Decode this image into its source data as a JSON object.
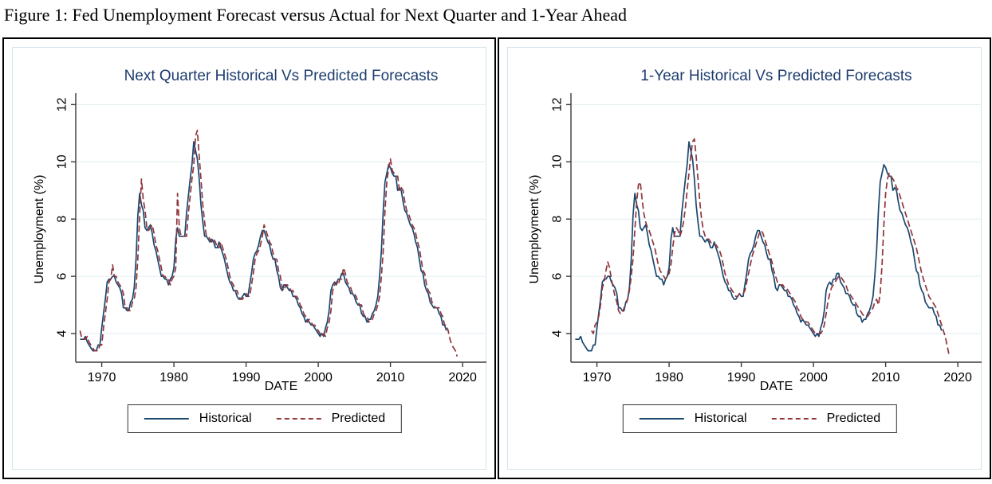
{
  "figure_caption": "Figure 1: Fed Unemployment Forecast versus Actual for Next Quarter and 1-Year Ahead",
  "colors": {
    "historical": "#1a476f",
    "predicted": "#90353b",
    "title": "#1e3d6e",
    "grid": "#e2edf1",
    "axis": "#3a3a3a",
    "panel_border": "#000000",
    "graph_frame_border": "#d4e4ed"
  },
  "chart_data": [
    {
      "type": "line",
      "title": "Next Quarter Historical Vs Predicted Forecasts",
      "xlabel": "DATE",
      "ylabel": "Unemployment (%)",
      "xlim": [
        1966.4,
        2023.3
      ],
      "ylim": [
        3.0,
        12.4
      ],
      "xticks": [
        1970,
        1980,
        1990,
        2000,
        2010,
        2020
      ],
      "yticks": [
        4,
        6,
        8,
        10,
        12
      ],
      "grid": "horizontal",
      "legend_position": "bottom",
      "series": [
        {
          "name": "Historical",
          "style": "solid",
          "color": "#1a476f",
          "x_start": 1967.0,
          "x_step": 0.25,
          "values": [
            3.8,
            3.8,
            3.8,
            3.9,
            3.7,
            3.6,
            3.5,
            3.4,
            3.4,
            3.4,
            3.6,
            3.6,
            4.2,
            4.7,
            5.2,
            5.8,
            5.9,
            5.9,
            6.0,
            6.0,
            5.8,
            5.7,
            5.6,
            5.4,
            4.9,
            4.9,
            4.8,
            4.8,
            5.1,
            5.2,
            5.6,
            6.6,
            8.1,
            8.9,
            8.5,
            8.3,
            7.7,
            7.6,
            7.7,
            7.8,
            7.5,
            7.1,
            6.9,
            6.6,
            6.3,
            6.0,
            6.0,
            5.9,
            5.9,
            5.7,
            5.9,
            6.0,
            6.3,
            7.3,
            7.7,
            7.4,
            7.4,
            7.4,
            7.4,
            8.2,
            8.8,
            9.4,
            9.9,
            10.7,
            10.4,
            10.1,
            9.4,
            8.5,
            7.9,
            7.4,
            7.4,
            7.3,
            7.2,
            7.3,
            7.2,
            7.0,
            7.0,
            7.2,
            7.0,
            6.8,
            6.6,
            6.3,
            6.0,
            5.8,
            5.7,
            5.5,
            5.5,
            5.3,
            5.2,
            5.2,
            5.3,
            5.4,
            5.3,
            5.3,
            5.7,
            6.1,
            6.6,
            6.8,
            6.9,
            7.1,
            7.4,
            7.6,
            7.6,
            7.4,
            7.2,
            7.1,
            6.8,
            6.6,
            6.6,
            6.2,
            6.0,
            5.6,
            5.5,
            5.7,
            5.7,
            5.6,
            5.5,
            5.5,
            5.3,
            5.3,
            5.2,
            5.0,
            4.9,
            4.7,
            4.6,
            4.4,
            4.5,
            4.4,
            4.3,
            4.3,
            4.2,
            4.1,
            4.0,
            3.9,
            4.0,
            3.9,
            4.2,
            4.4,
            4.8,
            5.5,
            5.7,
            5.8,
            5.7,
            5.9,
            5.9,
            6.1,
            6.1,
            5.8,
            5.7,
            5.6,
            5.4,
            5.4,
            5.3,
            5.1,
            5.0,
            5.0,
            4.7,
            4.6,
            4.6,
            4.4,
            4.5,
            4.5,
            4.7,
            4.8,
            5.0,
            5.3,
            6.0,
            6.9,
            8.3,
            9.3,
            9.6,
            9.9,
            9.8,
            9.6,
            9.5,
            9.5,
            9.0,
            9.1,
            9.0,
            8.6,
            8.3,
            8.2,
            8.0,
            7.8,
            7.7,
            7.5,
            7.2,
            7.0,
            6.6,
            6.2,
            6.1,
            5.7,
            5.5,
            5.4,
            5.1,
            5.0,
            4.9,
            4.9,
            4.9,
            4.7,
            4.6,
            4.3,
            4.3,
            4.1
          ]
        },
        {
          "name": "Predicted",
          "style": "dashed",
          "color": "#90353b",
          "x_start": 1967.0,
          "x_step": 0.25,
          "values": [
            4.1,
            3.8,
            3.8,
            3.8,
            3.9,
            3.7,
            3.6,
            3.5,
            3.4,
            3.4,
            3.4,
            3.6,
            3.6,
            4.2,
            4.7,
            5.2,
            5.8,
            5.9,
            6.4,
            6.0,
            6.0,
            5.8,
            5.7,
            5.6,
            5.4,
            4.9,
            4.9,
            4.8,
            4.8,
            5.1,
            5.2,
            5.6,
            6.6,
            8.1,
            9.4,
            8.7,
            8.3,
            7.7,
            7.6,
            7.7,
            7.8,
            7.5,
            7.1,
            6.9,
            6.6,
            6.3,
            6.0,
            6.0,
            5.9,
            5.9,
            5.7,
            5.9,
            6.0,
            6.3,
            8.9,
            7.7,
            7.4,
            7.4,
            7.4,
            7.4,
            8.2,
            8.8,
            9.4,
            9.9,
            10.9,
            11.1,
            10.2,
            9.4,
            8.5,
            7.9,
            7.4,
            7.4,
            7.3,
            7.2,
            7.3,
            7.2,
            7.0,
            7.0,
            7.2,
            7.0,
            6.8,
            6.6,
            6.3,
            6.0,
            5.8,
            5.7,
            5.5,
            5.5,
            5.3,
            5.2,
            5.2,
            5.3,
            5.4,
            5.3,
            5.3,
            5.7,
            6.1,
            6.6,
            6.8,
            6.9,
            7.1,
            7.4,
            7.8,
            7.6,
            7.4,
            7.2,
            7.1,
            6.8,
            6.6,
            6.6,
            6.2,
            6.0,
            5.6,
            5.5,
            5.7,
            5.7,
            5.6,
            5.5,
            5.5,
            5.3,
            5.3,
            5.2,
            5.0,
            4.9,
            4.7,
            4.6,
            4.4,
            4.5,
            4.4,
            4.3,
            4.3,
            4.2,
            4.1,
            4.0,
            3.9,
            4.0,
            3.9,
            4.2,
            4.4,
            4.8,
            5.5,
            5.7,
            5.8,
            5.7,
            5.9,
            5.9,
            6.3,
            6.1,
            5.8,
            5.7,
            5.6,
            5.4,
            5.4,
            5.3,
            5.1,
            5.0,
            5.0,
            4.7,
            4.6,
            4.6,
            4.4,
            4.5,
            4.5,
            4.7,
            4.8,
            5.0,
            5.3,
            6.0,
            6.9,
            8.3,
            9.3,
            9.8,
            10.1,
            9.7,
            9.6,
            9.5,
            9.5,
            9.0,
            9.1,
            9.0,
            8.6,
            8.3,
            8.2,
            8.0,
            7.8,
            7.7,
            7.5,
            7.2,
            7.0,
            6.6,
            6.2,
            6.1,
            5.7,
            5.5,
            5.4,
            5.1,
            5.0,
            4.9,
            4.9,
            4.9,
            4.7,
            4.6,
            4.3,
            4.3,
            4.1,
            3.8,
            3.6,
            3.5,
            3.4,
            3.2
          ]
        }
      ]
    },
    {
      "type": "line",
      "title": "1-Year Historical Vs Predicted Forecasts",
      "xlabel": "DATE",
      "ylabel": "Unemployment (%)",
      "xlim": [
        1966.4,
        2023.3
      ],
      "ylim": [
        3.0,
        12.4
      ],
      "xticks": [
        1970,
        1980,
        1990,
        2000,
        2010,
        2020
      ],
      "yticks": [
        4,
        6,
        8,
        10,
        12
      ],
      "grid": "horizontal",
      "legend_position": "bottom",
      "series": [
        {
          "name": "Historical",
          "style": "solid",
          "color": "#1a476f",
          "x_start": 1967.0,
          "x_step": 0.25,
          "values": [
            3.8,
            3.8,
            3.8,
            3.9,
            3.7,
            3.6,
            3.5,
            3.4,
            3.4,
            3.4,
            3.6,
            3.6,
            4.2,
            4.7,
            5.2,
            5.8,
            5.9,
            5.9,
            6.0,
            6.0,
            5.8,
            5.7,
            5.6,
            5.4,
            4.9,
            4.9,
            4.8,
            4.8,
            5.1,
            5.2,
            5.6,
            6.6,
            8.1,
            8.9,
            8.5,
            8.3,
            7.7,
            7.6,
            7.7,
            7.8,
            7.5,
            7.1,
            6.9,
            6.6,
            6.3,
            6.0,
            6.0,
            5.9,
            5.9,
            5.7,
            5.9,
            6.0,
            6.3,
            7.3,
            7.7,
            7.4,
            7.4,
            7.4,
            7.4,
            8.2,
            8.8,
            9.4,
            9.9,
            10.7,
            10.4,
            10.1,
            9.4,
            8.5,
            7.9,
            7.4,
            7.4,
            7.3,
            7.2,
            7.3,
            7.2,
            7.0,
            7.0,
            7.2,
            7.0,
            6.8,
            6.6,
            6.3,
            6.0,
            5.8,
            5.7,
            5.5,
            5.5,
            5.3,
            5.2,
            5.2,
            5.3,
            5.4,
            5.3,
            5.3,
            5.7,
            6.1,
            6.6,
            6.8,
            6.9,
            7.1,
            7.4,
            7.6,
            7.6,
            7.4,
            7.2,
            7.1,
            6.8,
            6.6,
            6.6,
            6.2,
            6.0,
            5.6,
            5.5,
            5.7,
            5.7,
            5.6,
            5.5,
            5.5,
            5.3,
            5.3,
            5.2,
            5.0,
            4.9,
            4.7,
            4.6,
            4.4,
            4.5,
            4.4,
            4.3,
            4.3,
            4.2,
            4.1,
            4.0,
            3.9,
            4.0,
            3.9,
            4.2,
            4.4,
            4.8,
            5.5,
            5.7,
            5.8,
            5.7,
            5.9,
            5.9,
            6.1,
            6.1,
            5.8,
            5.7,
            5.6,
            5.4,
            5.4,
            5.3,
            5.1,
            5.0,
            5.0,
            4.7,
            4.6,
            4.6,
            4.4,
            4.5,
            4.5,
            4.7,
            4.8,
            5.0,
            5.3,
            6.0,
            6.9,
            8.3,
            9.3,
            9.6,
            9.9,
            9.8,
            9.6,
            9.5,
            9.5,
            9.0,
            9.1,
            9.0,
            8.6,
            8.3,
            8.2,
            8.0,
            7.8,
            7.7,
            7.5,
            7.2,
            7.0,
            6.6,
            6.2,
            6.1,
            5.7,
            5.5,
            5.4,
            5.1,
            5.0,
            4.9,
            4.9,
            4.9,
            4.7,
            4.6,
            4.3,
            4.3,
            4.1
          ]
        },
        {
          "name": "Predicted",
          "style": "dashed",
          "color": "#90353b",
          "x_start": 1969.25,
          "x_step": 0.25,
          "values": [
            4.1,
            4.0,
            4.3,
            4.4,
            4.6,
            5.0,
            5.6,
            5.8,
            6.2,
            6.5,
            6.3,
            5.9,
            5.6,
            5.3,
            5.1,
            4.8,
            4.7,
            4.7,
            4.9,
            5.0,
            5.2,
            5.5,
            6.0,
            6.6,
            7.6,
            8.6,
            9.2,
            9.3,
            8.7,
            8.2,
            7.9,
            7.7,
            7.6,
            7.4,
            7.2,
            7.0,
            6.7,
            6.4,
            6.2,
            6.1,
            6.0,
            5.9,
            6.0,
            6.1,
            6.4,
            7.0,
            7.5,
            7.7,
            7.6,
            7.4,
            7.6,
            7.9,
            8.4,
            9.0,
            9.6,
            10.2,
            10.7,
            10.8,
            10.2,
            9.4,
            8.6,
            8.0,
            7.6,
            7.4,
            7.3,
            7.3,
            7.2,
            7.1,
            7.1,
            7.1,
            7.0,
            6.9,
            6.7,
            6.4,
            6.1,
            5.9,
            5.7,
            5.6,
            5.5,
            5.4,
            5.3,
            5.3,
            5.4,
            5.4,
            5.4,
            5.5,
            5.8,
            6.1,
            6.4,
            6.7,
            6.9,
            7.1,
            7.3,
            7.5,
            7.6,
            7.5,
            7.3,
            7.1,
            6.9,
            6.7,
            6.5,
            6.2,
            6.0,
            5.8,
            5.7,
            5.7,
            5.7,
            5.6,
            5.6,
            5.5,
            5.4,
            5.3,
            5.2,
            5.1,
            4.9,
            4.8,
            4.6,
            4.5,
            4.5,
            4.4,
            4.4,
            4.3,
            4.2,
            4.1,
            4.0,
            4.0,
            4.0,
            4.0,
            4.1,
            4.3,
            4.7,
            5.1,
            5.4,
            5.6,
            5.7,
            5.8,
            5.9,
            6.0,
            6.0,
            5.9,
            5.8,
            5.7,
            5.5,
            5.4,
            5.3,
            5.2,
            5.1,
            5.0,
            4.9,
            4.8,
            4.7,
            4.6,
            4.6,
            4.6,
            4.7,
            4.8,
            4.9,
            5.1,
            5.2,
            5.0,
            5.4,
            6.4,
            7.8,
            8.9,
            9.4,
            9.6,
            9.5,
            9.4,
            9.3,
            9.1,
            9.0,
            8.8,
            8.6,
            8.4,
            8.2,
            8.0,
            7.8,
            7.6,
            7.4,
            7.2,
            7.0,
            6.7,
            6.4,
            6.1,
            5.9,
            5.7,
            5.5,
            5.3,
            5.2,
            5.1,
            5.0,
            4.9,
            4.7,
            4.5,
            4.3,
            4.1,
            3.9,
            3.6,
            3.3,
            3.2
          ]
        }
      ]
    }
  ]
}
